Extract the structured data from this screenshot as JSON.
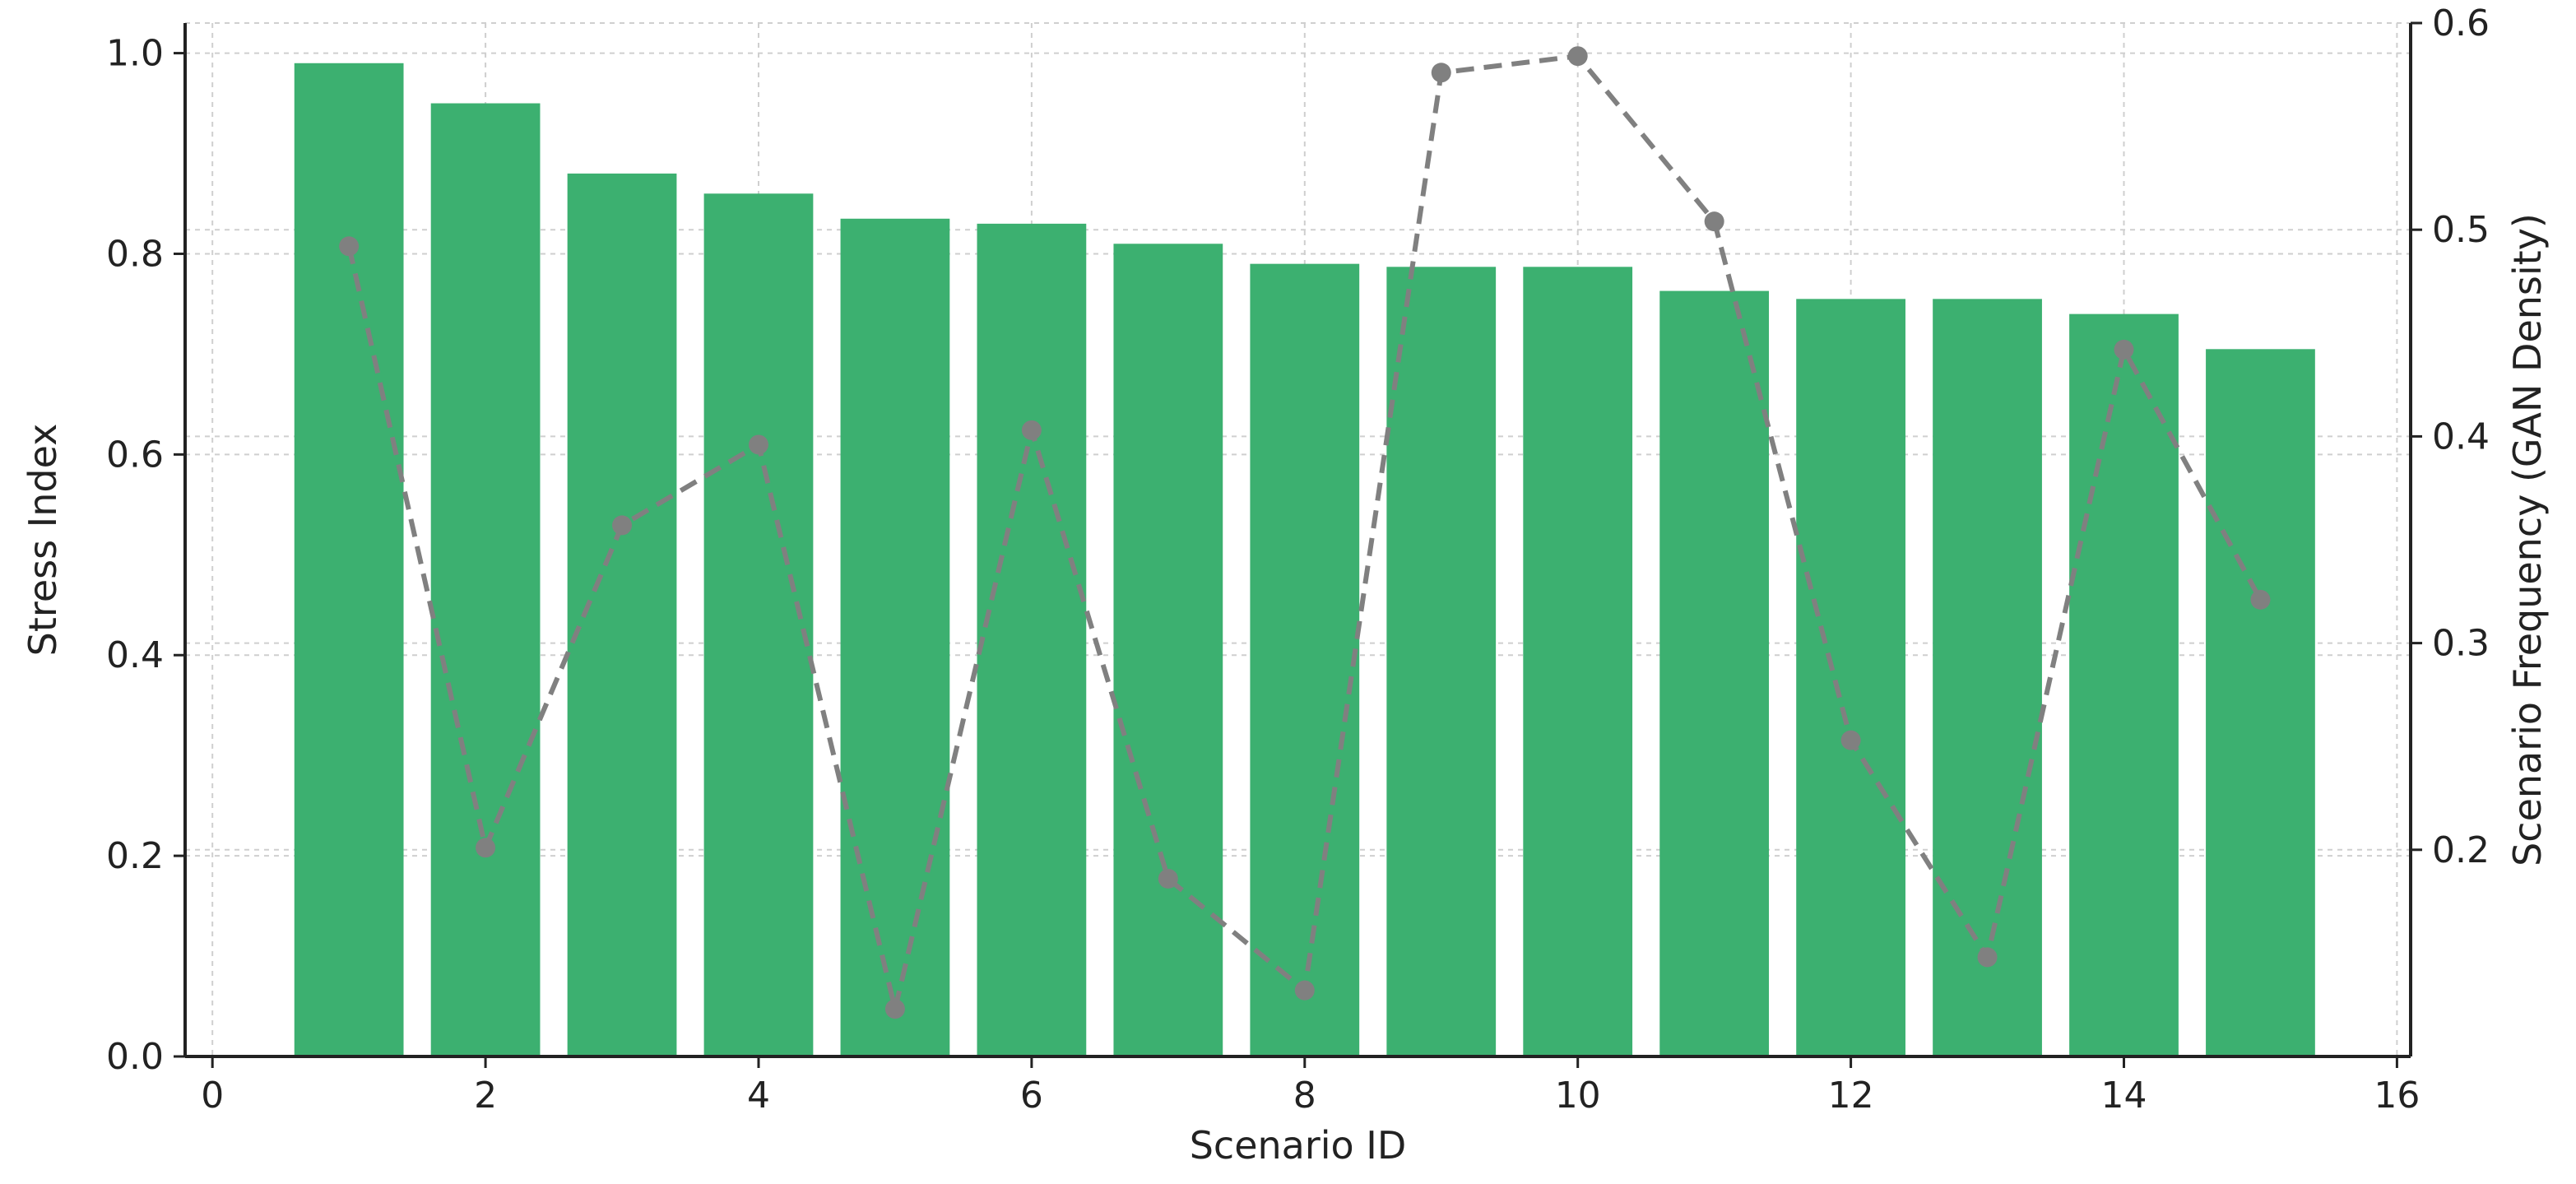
{
  "chart_data": {
    "type": "bar",
    "title": "",
    "xlabel": "Scenario ID",
    "ylabel": "Stress Index",
    "y2label": "Scenario Frequency (GAN Density)",
    "xlim": [
      -0.2,
      16.1
    ],
    "ylim": [
      0,
      1.03
    ],
    "y2lim": [
      0.1,
      0.6
    ],
    "xticks": [
      "0",
      "2",
      "4",
      "6",
      "8",
      "10",
      "12",
      "14",
      "16"
    ],
    "yticks": [
      "0.0",
      "0.2",
      "0.4",
      "0.6",
      "0.8",
      "1.0"
    ],
    "y2ticks": [
      "0.2",
      "0.3",
      "0.4",
      "0.5",
      "0.6"
    ],
    "grid": true,
    "x": [
      1,
      2,
      3,
      4,
      5,
      6,
      7,
      8,
      9,
      10,
      11,
      12,
      13,
      14,
      15
    ],
    "series": [
      {
        "type": "bar",
        "axis": "left",
        "color": "#3cb070",
        "values": [
          0.99,
          0.95,
          0.88,
          0.86,
          0.835,
          0.83,
          0.81,
          0.79,
          0.787,
          0.787,
          0.763,
          0.755,
          0.755,
          0.74,
          0.705
        ]
      },
      {
        "type": "line",
        "axis": "right",
        "color": "#808080",
        "style": "dashed",
        "marker": "circle",
        "values": [
          0.492,
          0.201,
          0.357,
          0.396,
          0.123,
          0.403,
          0.186,
          0.132,
          0.576,
          0.584,
          0.504,
          0.253,
          0.148,
          0.442,
          0.321
        ]
      }
    ]
  }
}
